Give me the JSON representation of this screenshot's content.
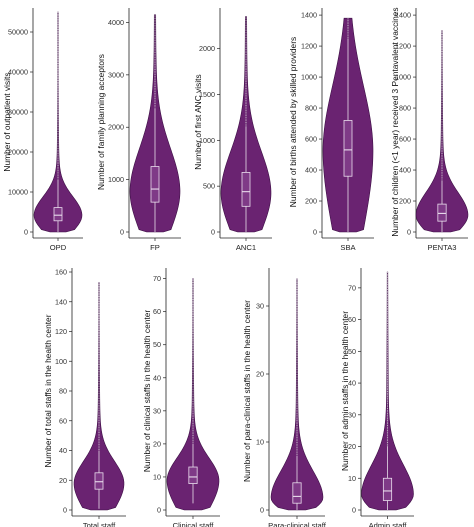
{
  "theme": {
    "violin_fill": "#6a2371",
    "violin_stroke": "#3d0f45",
    "box_fill": "#7f3a87",
    "box_stroke": "#e9dcec",
    "whisker_color": "#d9c9dc"
  },
  "chart_data": [
    {
      "type": "violin",
      "category": "OPD",
      "ylabel": "Number of outpatient visits",
      "ylim": [
        0,
        55000
      ],
      "yticks": [
        0,
        10000,
        20000,
        30000,
        40000,
        50000
      ],
      "data_max": 55000,
      "density_peak": 4200,
      "box": {
        "q1": 2800,
        "median": 4200,
        "q3": 6100,
        "whisker_high": 13000
      }
    },
    {
      "type": "violin",
      "category": "FP",
      "ylabel": "Number of family planning acceptors",
      "ylim": [
        0,
        4200
      ],
      "yticks": [
        0,
        1000,
        2000,
        3000,
        4000
      ],
      "data_max": 4150,
      "density_peak": 780,
      "box": {
        "q1": 570,
        "median": 820,
        "q3": 1250,
        "whisker_high": 2350
      }
    },
    {
      "type": "violin",
      "category": "ANC1",
      "ylabel": "Number of first ANC visits",
      "ylim": [
        0,
        2400
      ],
      "yticks": [
        0,
        500,
        1000,
        1500,
        2000
      ],
      "data_max": 2350,
      "density_peak": 430,
      "box": {
        "q1": 280,
        "median": 440,
        "q3": 650,
        "whisker_high": 1150
      }
    },
    {
      "type": "violin",
      "category": "SBA",
      "ylabel": "Number of births attended by skilled providers",
      "ylim": [
        0,
        1420
      ],
      "yticks": [
        0,
        200,
        400,
        600,
        800,
        1000,
        1200,
        1400
      ],
      "data_max": 1380,
      "density_peak": 530,
      "box": {
        "q1": 360,
        "median": 530,
        "q3": 720,
        "whisker_high": 1250
      }
    },
    {
      "type": "violin",
      "category": "PENTA3",
      "ylabel": "Number of children (<1 year) received 3 Pentavalent vaccines",
      "ylim": [
        0,
        1420
      ],
      "yticks": [
        0,
        200,
        400,
        600,
        800,
        1000,
        1200,
        1400
      ],
      "data_max": 1300,
      "density_peak": 110,
      "box": {
        "q1": 70,
        "median": 120,
        "q3": 180,
        "whisker_high": 330
      }
    },
    {
      "type": "violin",
      "category": "Total staff",
      "ylabel": "Number of total staffs in the health center",
      "ylim": [
        0,
        160
      ],
      "yticks": [
        0,
        20,
        40,
        60,
        80,
        100,
        120,
        140,
        160
      ],
      "data_max": 153,
      "density_peak": 18,
      "box": {
        "q1": 14,
        "median": 19,
        "q3": 25,
        "whisker_high": 40
      }
    },
    {
      "type": "violin",
      "category": "Clinical staff",
      "ylabel": "Number of clinical staffs in the health center",
      "ylim": [
        0,
        72
      ],
      "yticks": [
        0,
        10,
        20,
        30,
        40,
        50,
        60,
        70
      ],
      "data_max": 70,
      "density_peak": 9,
      "box": {
        "q1": 8,
        "median": 10,
        "q3": 13,
        "whisker_high": 20
      }
    },
    {
      "type": "violin",
      "category": "Para-clinical staff",
      "ylabel": "Number of para-clinical staffs in the health center",
      "ylim": [
        0,
        35
      ],
      "yticks": [
        0,
        10,
        20,
        30
      ],
      "data_max": 34,
      "density_peak": 1.8,
      "box": {
        "q1": 1,
        "median": 2,
        "q3": 4,
        "whisker_high": 8
      }
    },
    {
      "type": "violin",
      "category": "Admin staff",
      "ylabel": "Number of admin staffs in the health center",
      "ylim": [
        0,
        75
      ],
      "yticks": [
        0,
        10,
        20,
        30,
        40,
        50,
        60,
        70
      ],
      "data_max": 75,
      "density_peak": 5,
      "box": {
        "q1": 3,
        "median": 6,
        "q3": 10,
        "whisker_high": 20
      }
    }
  ]
}
